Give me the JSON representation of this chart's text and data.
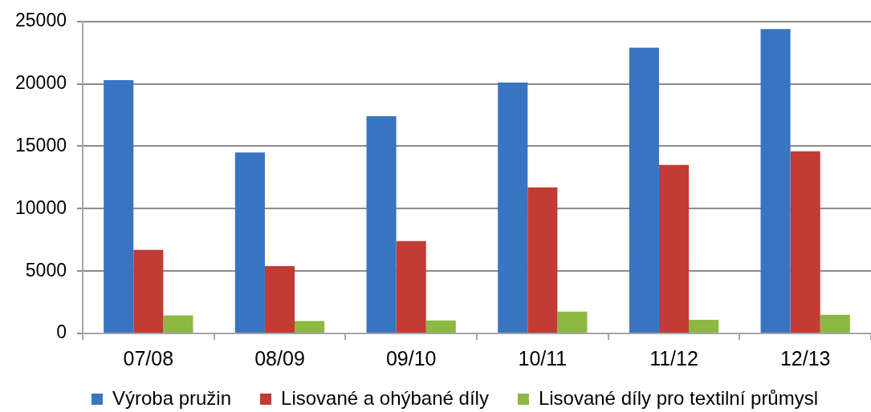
{
  "chart_data": {
    "type": "bar",
    "categories": [
      "07/08",
      "08/09",
      "09/10",
      "10/11",
      "11/12",
      "12/13"
    ],
    "series": [
      {
        "name": "Výroba pružin",
        "color": "#3874c2",
        "values": [
          20300,
          14500,
          17400,
          20100,
          22900,
          24400
        ]
      },
      {
        "name": "Lisované a ohýbané díly",
        "color": "#c23b35",
        "values": [
          6700,
          5400,
          7400,
          11700,
          13500,
          14600
        ]
      },
      {
        "name": "Lisované díly pro textilní průmysl",
        "color": "#8cb843",
        "values": [
          1450,
          1000,
          1050,
          1750,
          1100,
          1500
        ]
      }
    ],
    "ylim": [
      0,
      25000
    ],
    "yticks": [
      0,
      5000,
      10000,
      15000,
      20000,
      25000
    ],
    "grid": "y",
    "legend": "bottom"
  }
}
